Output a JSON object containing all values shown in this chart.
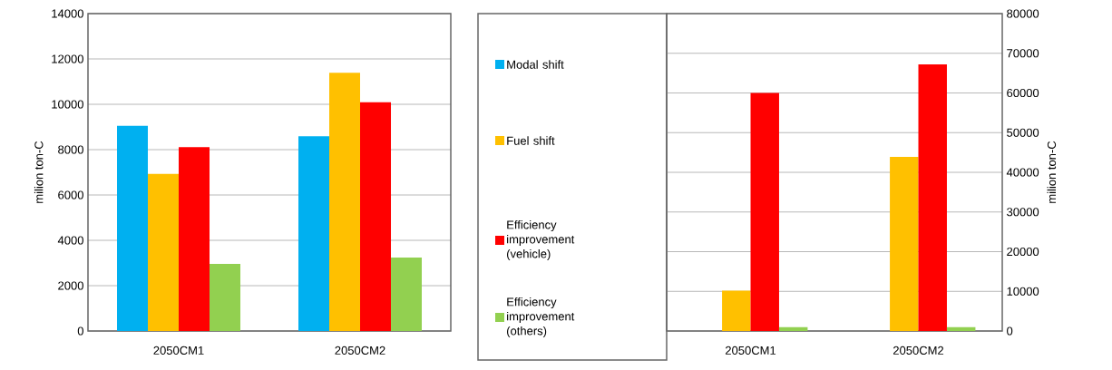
{
  "chart_data": [
    {
      "type": "bar",
      "categories": [
        "2050CM1",
        "2050CM2"
      ],
      "ylabel": "milion ton-C",
      "ylim": [
        0,
        14000
      ],
      "yticks": [
        0,
        2000,
        4000,
        6000,
        8000,
        10000,
        12000,
        14000
      ],
      "grid": "y",
      "legend": "right",
      "series": [
        {
          "name": "Modal shift",
          "color": "#00b0f0",
          "values": [
            9050,
            8590
          ]
        },
        {
          "name": "Fuel shift",
          "color": "#ffc000",
          "values": [
            6930,
            11390
          ]
        },
        {
          "name": "Efficiency improvement (vehicle)",
          "color": "#ff0000",
          "values": [
            8110,
            10090
          ]
        },
        {
          "name": "Efficiency improvement (others)",
          "color": "#92d050",
          "values": [
            2960,
            3240
          ]
        }
      ]
    },
    {
      "type": "bar",
      "categories": [
        "2050CM1",
        "2050CM2"
      ],
      "y2label": "milion ton-C",
      "y2lim": [
        0,
        80000
      ],
      "y2ticks": [
        0,
        10000,
        20000,
        30000,
        40000,
        50000,
        60000,
        70000,
        80000
      ],
      "grid": "y",
      "series": [
        {
          "color": "#00b0f0",
          "axis": "y2",
          "values": [
            0,
            0
          ]
        },
        {
          "color": "#ffc000",
          "axis": "y2",
          "values": [
            10200,
            43900
          ]
        },
        {
          "color": "#ff0000",
          "axis": "y2",
          "values": [
            60000,
            67200
          ]
        },
        {
          "color": "#92d050",
          "axis": "y2",
          "values": [
            1000,
            1000
          ]
        }
      ]
    }
  ]
}
